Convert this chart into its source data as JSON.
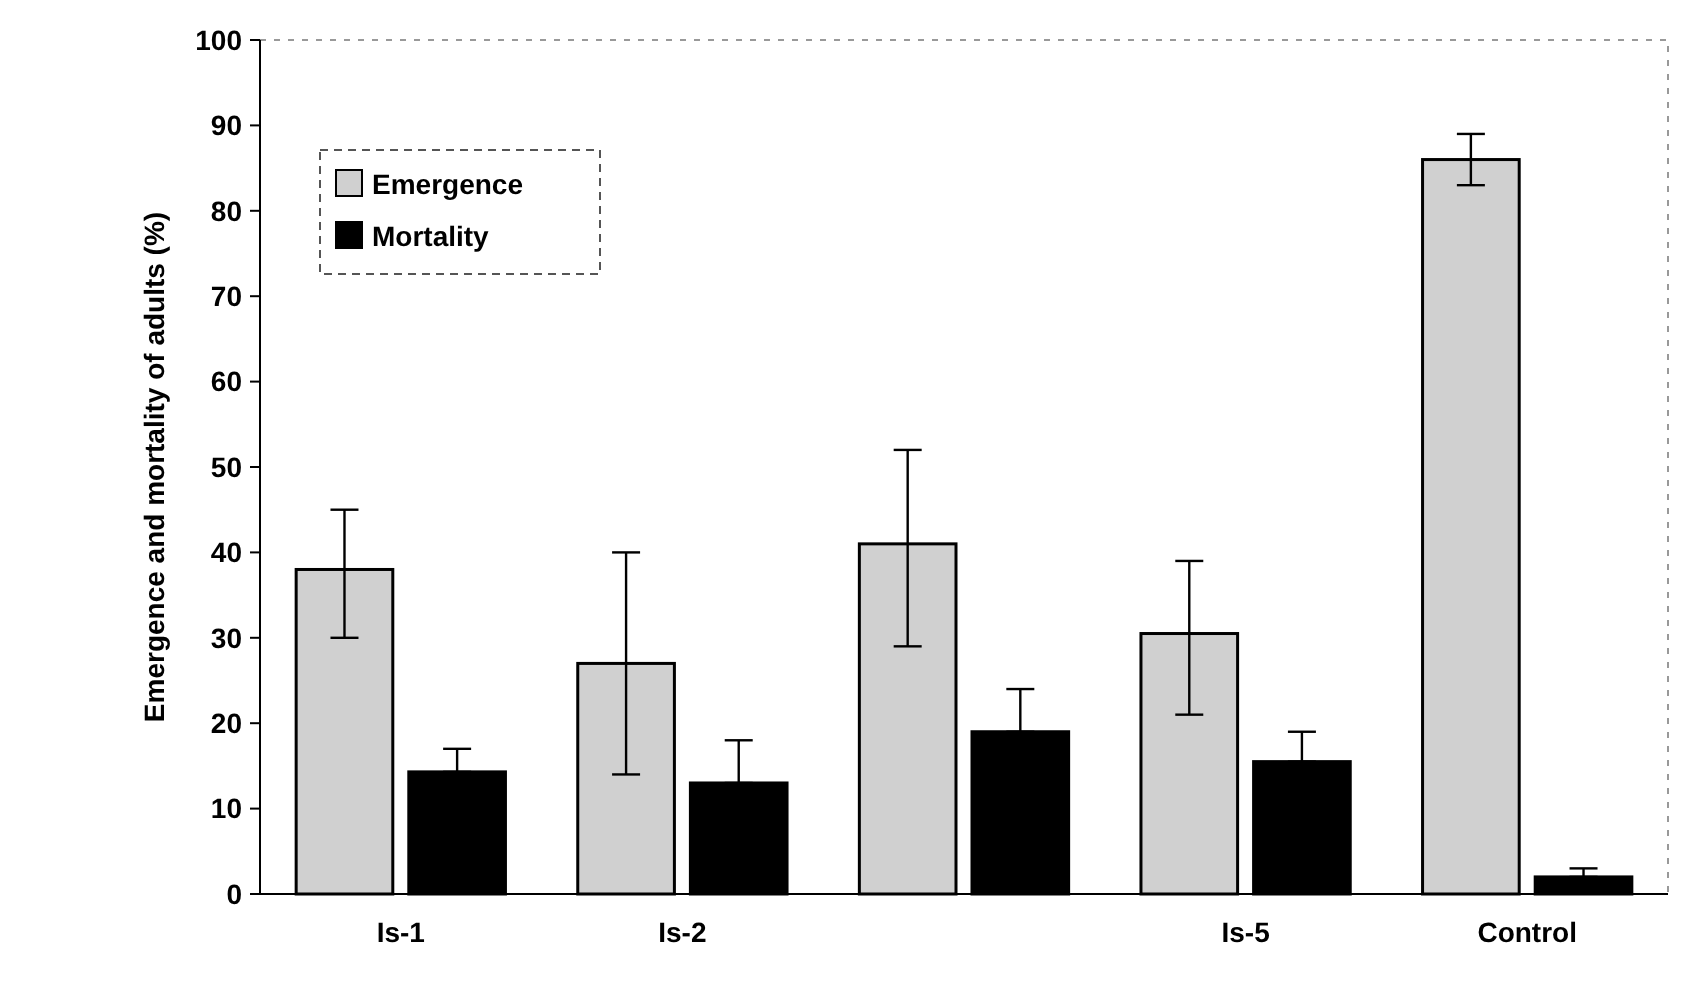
{
  "chart_data": {
    "type": "bar",
    "ylabel": "Emergence and mortality of adults (%)",
    "categories": [
      "Is-1",
      "Is-2",
      null,
      "Is-5",
      "Control"
    ],
    "series": [
      {
        "name": "Emergence",
        "color": "#d0d0d0",
        "values": [
          38,
          27,
          41,
          30.5,
          86
        ],
        "errors": [
          [
            30,
            45
          ],
          [
            14,
            40
          ],
          [
            29,
            52
          ],
          [
            21,
            39
          ],
          [
            83,
            89
          ]
        ]
      },
      {
        "name": "Mortality",
        "color": "#000000",
        "values": [
          14.3,
          13,
          19,
          15.5,
          2
        ],
        "errors": [
          [
            14.3,
            17
          ],
          [
            13,
            18
          ],
          [
            19,
            24
          ],
          [
            15.5,
            19
          ],
          [
            2,
            3
          ]
        ]
      }
    ],
    "ylim": [
      0,
      100
    ],
    "yticks": [
      0,
      10,
      20,
      30,
      40,
      50,
      60,
      70,
      80,
      90,
      100
    ],
    "grid": false,
    "legend": "top left"
  }
}
